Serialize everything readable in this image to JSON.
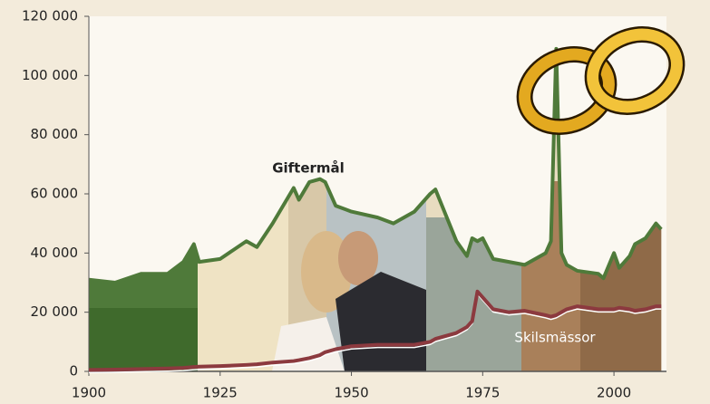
{
  "chart_data": {
    "type": "line",
    "x": [
      1900,
      1905,
      1910,
      1915,
      1918,
      1920,
      1921,
      1925,
      1930,
      1932,
      1935,
      1939,
      1940,
      1942,
      1944,
      1945,
      1947,
      1950,
      1955,
      1958,
      1962,
      1965,
      1966,
      1970,
      1972,
      1973,
      1974,
      1975,
      1977,
      1980,
      1983,
      1987,
      1988,
      1989,
      1990,
      1991,
      1993,
      1997,
      1998,
      2000,
      2001,
      2003,
      2004,
      2006,
      2008,
      2009
    ],
    "series": [
      {
        "name": "Giftermål",
        "color": "#4f7a3a",
        "values": [
          31000,
          30000,
          33000,
          33000,
          37000,
          43000,
          37000,
          38000,
          44000,
          42000,
          50000,
          62000,
          58000,
          64000,
          65000,
          64000,
          56000,
          54000,
          52000,
          50000,
          54000,
          60000,
          61500,
          44000,
          39000,
          45000,
          44000,
          45000,
          38000,
          37000,
          36000,
          40000,
          44000,
          109000,
          40000,
          36000,
          34000,
          33000,
          31500,
          40000,
          35000,
          39000,
          43000,
          45000,
          50000,
          48000
        ]
      },
      {
        "name": "Skilsmässor",
        "color": "#8c3a3f",
        "values": [
          500,
          600,
          800,
          1000,
          1200,
          1500,
          1600,
          1800,
          2200,
          2400,
          3000,
          3500,
          3800,
          4500,
          5500,
          6500,
          7500,
          8500,
          9000,
          9000,
          9000,
          10000,
          11000,
          13000,
          15000,
          17000,
          27000,
          25000,
          21000,
          20000,
          20500,
          19000,
          18500,
          19000,
          20000,
          21000,
          22000,
          21000,
          21000,
          21000,
          21500,
          21000,
          20500,
          21000,
          22000,
          22000
        ]
      }
    ],
    "xlim": [
      1900,
      2010
    ],
    "ylim": [
      0,
      120000
    ],
    "xticks": [
      1900,
      1925,
      1950,
      1975,
      2000
    ],
    "yticks": [
      0,
      {
        "value": 20000,
        "label": "20 000"
      },
      {
        "value": 40000,
        "label": "40 000"
      },
      {
        "value": 60000,
        "label": "60 000"
      },
      {
        "value": 80000,
        "label": "80 000"
      },
      {
        "value": 100000,
        "label": "100 000"
      },
      {
        "value": 120000,
        "label": "120 000"
      }
    ]
  }
}
